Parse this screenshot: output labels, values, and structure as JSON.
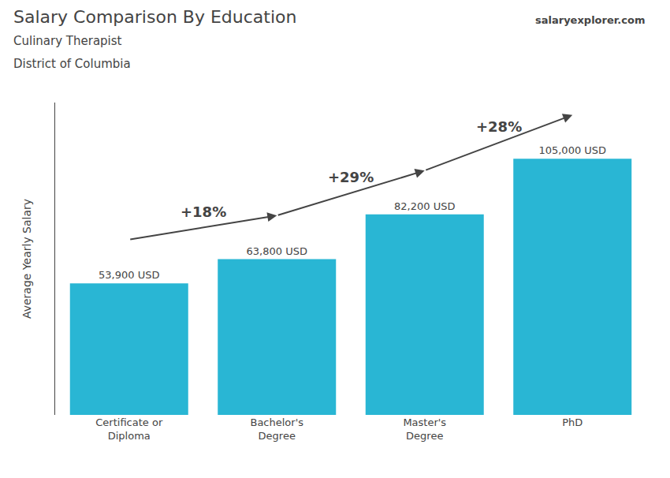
{
  "chart_data": {
    "type": "bar",
    "title": "Salary Comparison By Education",
    "subtitle": [
      "Culinary Therapist",
      "District of Columbia"
    ],
    "source": "salaryexplorer.com",
    "ylabel": "Average Yearly Salary",
    "categories": [
      "Certificate or\nDiploma",
      "Bachelor's\nDegree",
      "Master's\nDegree",
      "PhD"
    ],
    "values": [
      53900,
      63800,
      82200,
      105000
    ],
    "value_labels": [
      "53,900 USD",
      "63,800 USD",
      "82,200 USD",
      "105,000 USD"
    ],
    "data_labels": true,
    "annotations": [
      "+18%",
      "+29%",
      "+28%"
    ],
    "color": "#29b6d4",
    "ylim": [
      0,
      128000
    ],
    "grid": false,
    "tick_labels": "x"
  }
}
